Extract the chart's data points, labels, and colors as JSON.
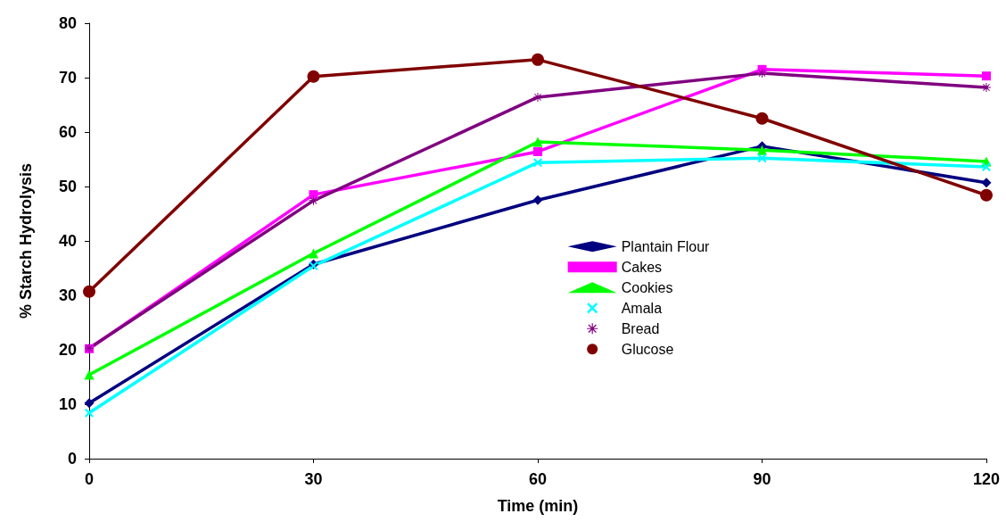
{
  "chart_data": {
    "type": "line",
    "xlabel": "Time (min)",
    "ylabel": "% Starch Hydrolysis",
    "x": [
      0,
      30,
      60,
      90,
      120
    ],
    "xlim": [
      0,
      120
    ],
    "xticks": [
      0,
      30,
      60,
      90,
      120
    ],
    "ylim": [
      0,
      80
    ],
    "yticks": [
      0,
      10,
      20,
      30,
      40,
      50,
      60,
      70,
      80
    ],
    "grid": false,
    "legend": "right",
    "line_style": "solid",
    "series": [
      {
        "name": "Plantain Flour",
        "color": "#000080",
        "marker": "diamond",
        "values": [
          10.2,
          35.7,
          47.5,
          57.4,
          50.7
        ]
      },
      {
        "name": "Cakes",
        "color": "#ff00ff",
        "marker": "square",
        "values": [
          20.2,
          48.5,
          56.4,
          71.5,
          70.3
        ]
      },
      {
        "name": "Cookies",
        "color": "#00ff00",
        "marker": "triangle",
        "values": [
          15.4,
          37.7,
          58.2,
          56.7,
          54.6
        ]
      },
      {
        "name": "Amala",
        "color": "#00ffff",
        "marker": "cross",
        "values": [
          8.4,
          35.4,
          54.4,
          55.2,
          53.6
        ]
      },
      {
        "name": "Bread",
        "color": "#800080",
        "marker": "star",
        "values": [
          20.3,
          47.4,
          66.4,
          70.8,
          68.2
        ]
      },
      {
        "name": "Glucose",
        "color": "#800000",
        "marker": "circle",
        "values": [
          30.7,
          70.2,
          73.3,
          62.5,
          48.4
        ]
      }
    ]
  }
}
